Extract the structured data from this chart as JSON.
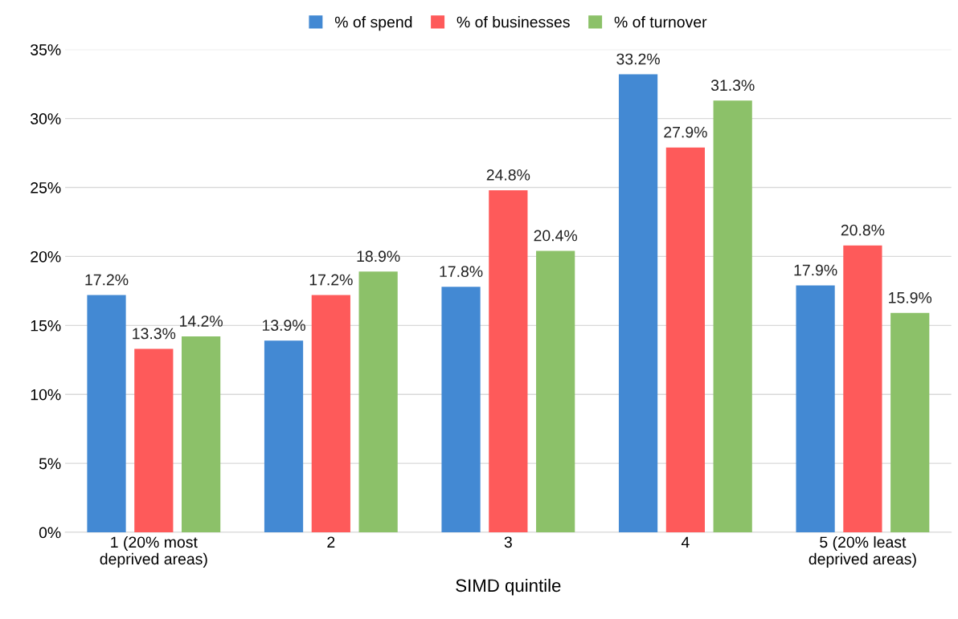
{
  "chart_data": {
    "type": "bar",
    "xlabel": "SIMD quintile",
    "categories": [
      "1 (20% most\ndeprived areas)",
      "2",
      "3",
      "4",
      "5 (20% least\ndeprived areas)"
    ],
    "series": [
      {
        "name": "% of spend",
        "color": "#4389d3",
        "values": [
          17.2,
          13.9,
          17.8,
          33.2,
          17.9
        ],
        "value_labels": [
          "17.2%",
          "13.9%",
          "17.8%",
          "33.2%",
          "17.9%"
        ]
      },
      {
        "name": "% of businesses",
        "color": "#fe5a5a",
        "values": [
          13.3,
          17.2,
          24.8,
          27.9,
          20.8
        ],
        "value_labels": [
          "13.3%",
          "17.2%",
          "24.8%",
          "27.9%",
          "20.8%"
        ]
      },
      {
        "name": "% of turnover",
        "color": "#8cc169",
        "values": [
          14.2,
          18.9,
          20.4,
          31.3,
          15.9
        ],
        "value_labels": [
          "14.2%",
          "18.9%",
          "20.4%",
          "31.3%",
          "15.9%"
        ]
      }
    ],
    "ylim": [
      0,
      35
    ],
    "yticks": [
      {
        "value": 0,
        "label": "0%"
      },
      {
        "value": 5,
        "label": "5%"
      },
      {
        "value": 10,
        "label": "10%"
      },
      {
        "value": 15,
        "label": "15%"
      },
      {
        "value": 20,
        "label": "20%"
      },
      {
        "value": 25,
        "label": "25%"
      },
      {
        "value": 30,
        "label": "30%"
      },
      {
        "value": 35,
        "label": "35%"
      }
    ],
    "grid": "y",
    "legend": "top"
  }
}
